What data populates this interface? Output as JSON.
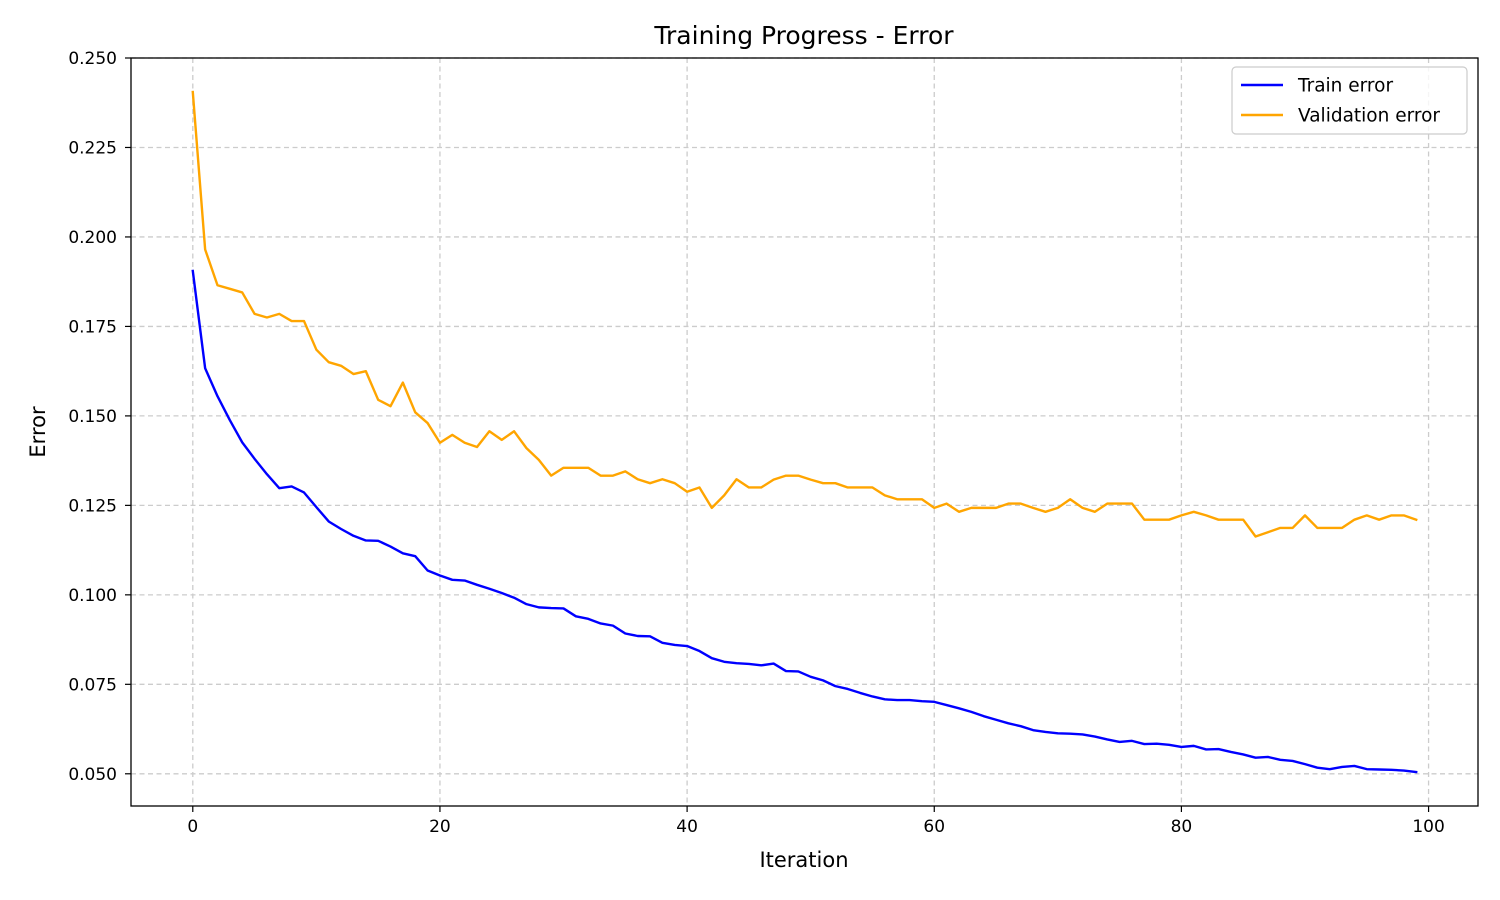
{
  "chart_data": {
    "type": "line",
    "title": "Training Progress - Error",
    "xlabel": "Iteration",
    "ylabel": "Error",
    "xlim": [
      -5,
      104
    ],
    "ylim": [
      0.041,
      0.25
    ],
    "xticks": [
      0,
      20,
      40,
      60,
      80,
      100
    ],
    "yticks": [
      0.05,
      0.075,
      0.1,
      0.125,
      0.15,
      0.175,
      0.2,
      0.225,
      0.25
    ],
    "xtick_labels": [
      "0",
      "20",
      "40",
      "60",
      "80",
      "100"
    ],
    "ytick_labels": [
      "0.050",
      "0.075",
      "0.100",
      "0.125",
      "0.150",
      "0.175",
      "0.200",
      "0.225",
      "0.250"
    ],
    "grid": true,
    "legend_position": "top-right",
    "series": [
      {
        "name": "Train error",
        "color": "#0000ff",
        "x_start": 0,
        "values": [
          0.1905,
          0.1633,
          0.1555,
          0.1488,
          0.1426,
          0.138,
          0.1337,
          0.1298,
          0.1303,
          0.1286,
          0.1245,
          0.1205,
          0.1184,
          0.1165,
          0.1152,
          0.1151,
          0.1135,
          0.1116,
          0.1108,
          0.1068,
          0.1054,
          0.1042,
          0.104,
          0.1028,
          0.1017,
          0.1005,
          0.0992,
          0.0974,
          0.0965,
          0.0963,
          0.0962,
          0.094,
          0.0933,
          0.092,
          0.0914,
          0.0892,
          0.0885,
          0.0884,
          0.0866,
          0.086,
          0.0857,
          0.0843,
          0.0823,
          0.0813,
          0.0809,
          0.0807,
          0.0803,
          0.0808,
          0.0787,
          0.0786,
          0.0771,
          0.0761,
          0.0745,
          0.0737,
          0.0726,
          0.0716,
          0.0708,
          0.0706,
          0.0706,
          0.0703,
          0.0701,
          0.0692,
          0.0683,
          0.0673,
          0.0661,
          0.0651,
          0.0641,
          0.0633,
          0.0622,
          0.0617,
          0.0613,
          0.0612,
          0.061,
          0.0604,
          0.0596,
          0.0589,
          0.0592,
          0.0583,
          0.0584,
          0.0581,
          0.0575,
          0.0578,
          0.0568,
          0.0569,
          0.0561,
          0.0554,
          0.0545,
          0.0547,
          0.0539,
          0.0536,
          0.0527,
          0.0517,
          0.0513,
          0.0519,
          0.0522,
          0.0513,
          0.0512,
          0.0511,
          0.0509,
          0.0505
        ]
      },
      {
        "name": "Validation error",
        "color": "#ffa500",
        "x_start": 0,
        "values": [
          0.2405,
          0.1965,
          0.1865,
          0.1855,
          0.1845,
          0.1785,
          0.1775,
          0.1785,
          0.1765,
          0.1765,
          0.1685,
          0.165,
          0.164,
          0.1617,
          0.1625,
          0.1545,
          0.1527,
          0.1593,
          0.151,
          0.148,
          0.1425,
          0.1447,
          0.1425,
          0.1413,
          0.1457,
          0.1433,
          0.1457,
          0.141,
          0.1377,
          0.1333,
          0.1355,
          0.1355,
          0.1355,
          0.1333,
          0.1333,
          0.1345,
          0.1323,
          0.1312,
          0.1323,
          0.1312,
          0.1288,
          0.13,
          0.1243,
          0.1278,
          0.1323,
          0.13,
          0.13,
          0.1322,
          0.1333,
          0.1333,
          0.1322,
          0.1312,
          0.1312,
          0.13,
          0.13,
          0.13,
          0.1278,
          0.1267,
          0.1267,
          0.1267,
          0.1243,
          0.1255,
          0.1232,
          0.1243,
          0.1243,
          0.1243,
          0.1255,
          0.1255,
          0.1243,
          0.1232,
          0.1243,
          0.1267,
          0.1243,
          0.1232,
          0.1255,
          0.1255,
          0.1255,
          0.121,
          0.121,
          0.121,
          0.1222,
          0.1232,
          0.1222,
          0.121,
          0.121,
          0.121,
          0.1163,
          0.1175,
          0.1187,
          0.1187,
          0.1222,
          0.1187,
          0.1187,
          0.1187,
          0.121,
          0.1222,
          0.121,
          0.1222,
          0.1222,
          0.121
        ]
      }
    ]
  }
}
